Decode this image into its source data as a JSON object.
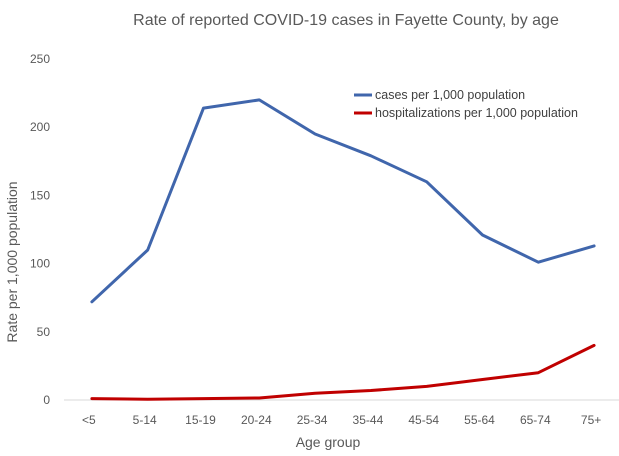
{
  "chart_data": {
    "type": "line",
    "title": "Rate of reported COVID-19 cases in Fayette County, by age",
    "xlabel": "Age group",
    "ylabel": "Rate per 1,000 population",
    "categories": [
      "<5",
      "5-14",
      "15-19",
      "20-24",
      "25-34",
      "35-44",
      "45-54",
      "55-64",
      "65-74",
      "75+"
    ],
    "ylim": [
      0,
      250
    ],
    "yticks": [
      "0",
      "50",
      "100",
      "150",
      "200",
      "250"
    ],
    "grid": false,
    "legend_position": "top-right",
    "series": [
      {
        "name": "cases per 1,000 population",
        "color": "#4066AC",
        "values": [
          72,
          110,
          214,
          220,
          195,
          179,
          160,
          121,
          101,
          113
        ]
      },
      {
        "name": "hospitalizations per 1,000 population",
        "color": "#C00000",
        "values": [
          1,
          0.5,
          1,
          1.5,
          5,
          7,
          10,
          15,
          20,
          40
        ]
      }
    ]
  }
}
